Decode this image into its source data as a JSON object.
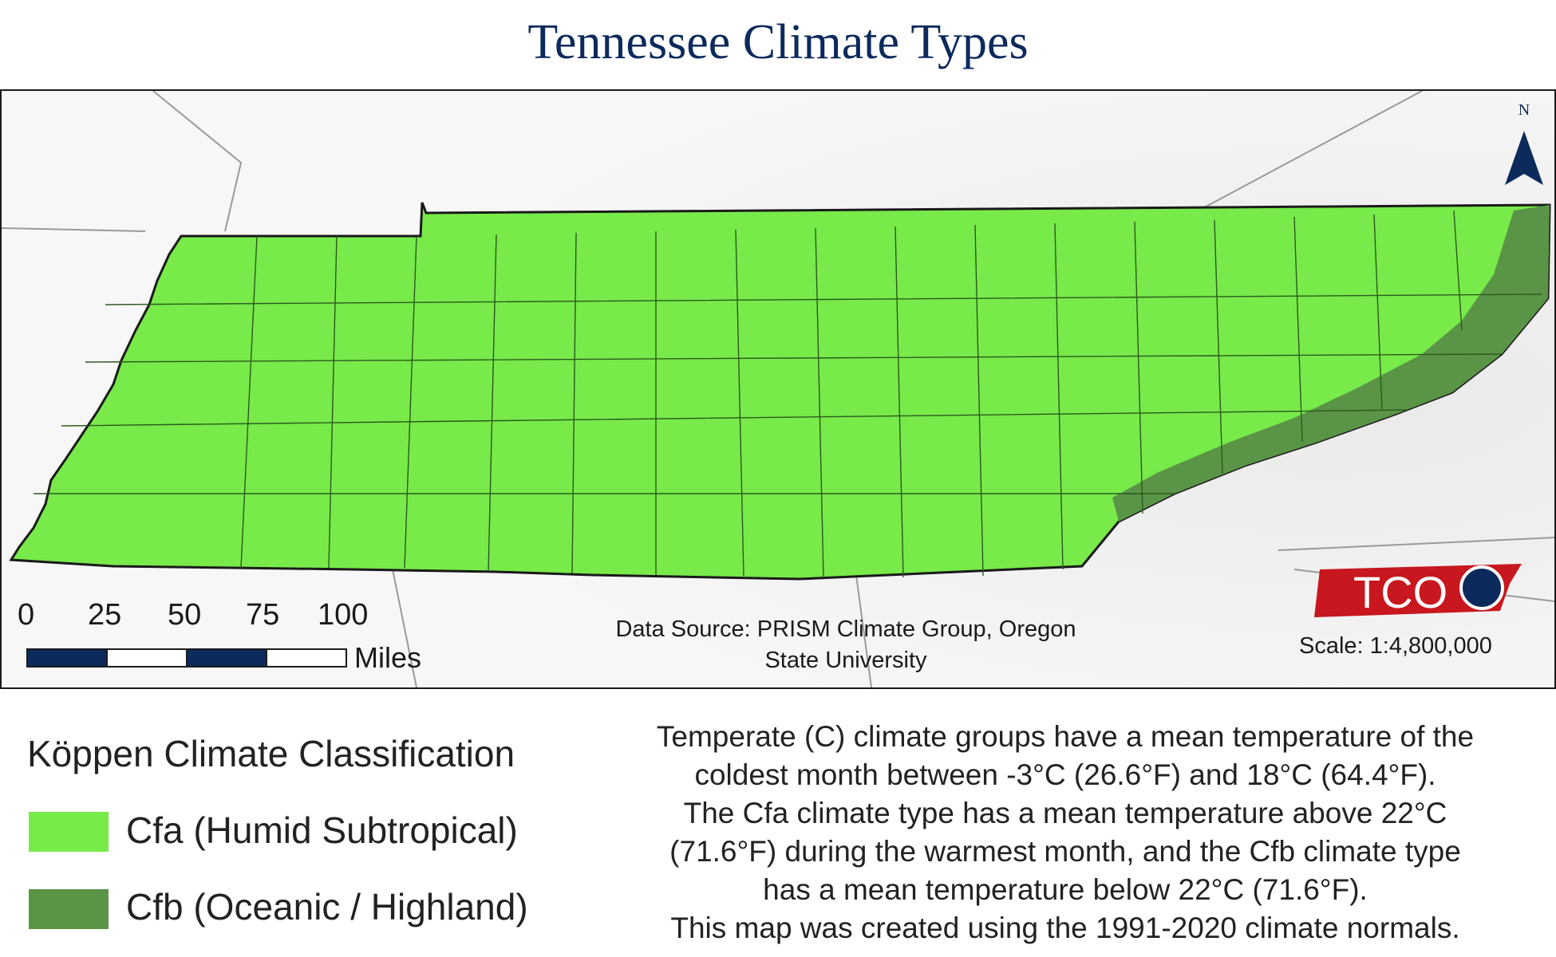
{
  "title": "Tennessee Climate Types",
  "colors": {
    "cfa": "#78ea4a",
    "cfb": "#5a9446",
    "title": "#0d2a5c",
    "scalebar_dark": "#0d2a5c",
    "logo_red": "#c8171e"
  },
  "map": {
    "north_label": "N",
    "logo_text": "TCO",
    "scale_bar": {
      "ticks": [
        "0",
        "25",
        "50",
        "75",
        "100"
      ],
      "unit": "Miles"
    },
    "data_source": [
      "Data Source: PRISM Climate Group, Oregon",
      "State University"
    ],
    "scale_text": "Scale: 1:4,800,000"
  },
  "legend": {
    "title": "Köppen Climate Classification",
    "items": [
      {
        "code": "cfa",
        "label": "Cfa (Humid Subtropical)"
      },
      {
        "code": "cfb",
        "label": "Cfb (Oceanic / Highland)"
      }
    ]
  },
  "description": [
    "Temperate (C) climate groups have a mean temperature of the",
    "coldest month between -3°C (26.6°F) and 18°C (64.4°F).",
    "The Cfa climate type has a mean temperature above 22°C",
    "(71.6°F) during the warmest month, and the Cfb climate type",
    "has a mean temperature below 22°C (71.6°F).",
    "This map was created using the 1991-2020 climate normals."
  ]
}
